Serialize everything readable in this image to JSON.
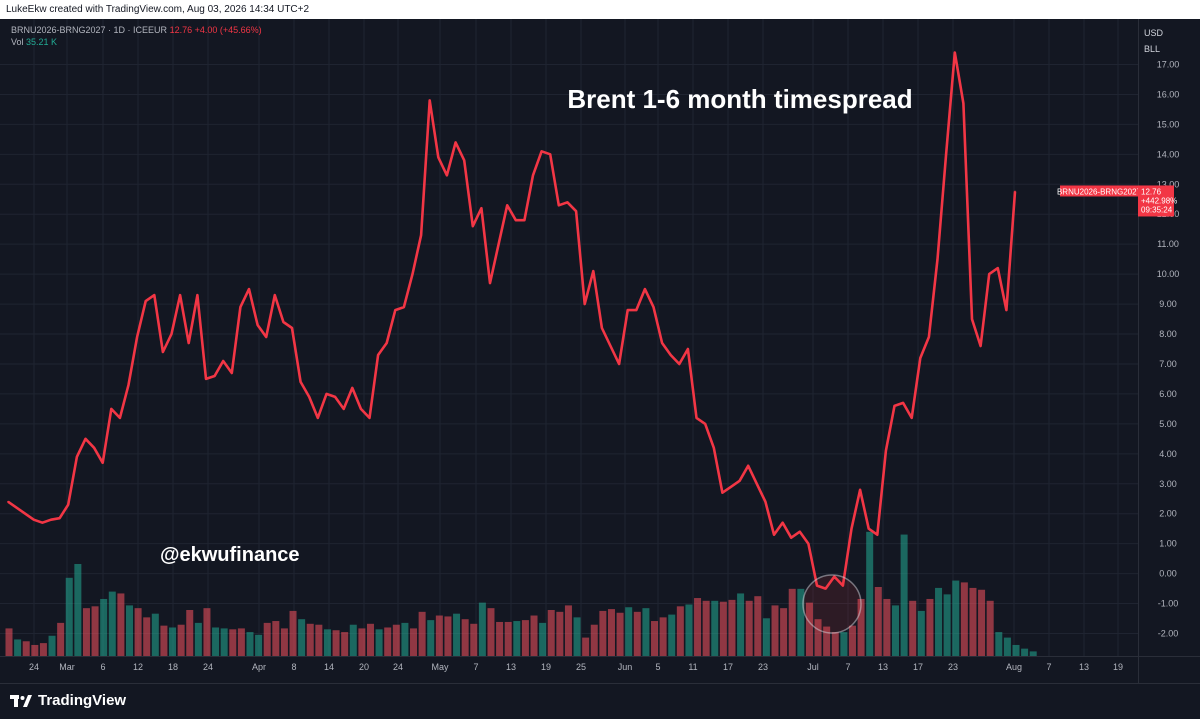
{
  "header": {
    "credit": "LukeEkw created with TradingView.com, Aug 03, 2026 14:34 UTC+2"
  },
  "legend": {
    "symbol": "BRNU2026-BRNG2027 · 1D · ICEEUR",
    "last": "12.76",
    "change": "+4.00 (+45.66%)",
    "vol_label": "Vol",
    "vol_value": "35.21 K"
  },
  "currency": {
    "line1": "USD",
    "line2": "BLL"
  },
  "price_tag": {
    "symbol": "BRNU2026-BRNG2027",
    "price": "12.76",
    "pct": "+442.98%",
    "countdown": "09:35:24"
  },
  "footer": {
    "brand": "TradingView"
  },
  "colors": {
    "line": "#f23645",
    "vol_up": "#22ab94",
    "vol_down": "#f7525f",
    "bg": "#131722",
    "grid": "#1f2431"
  },
  "chart_data": {
    "type": "line",
    "title": "Brent 1-6 month timespread",
    "annotation": "@ekwufinance",
    "ylim": [
      -2.5,
      17.5
    ],
    "yticks": [
      "17.00",
      "16.00",
      "15.00",
      "14.00",
      "13.00",
      "12.00",
      "11.00",
      "10.00",
      "9.00",
      "8.00",
      "7.00",
      "6.00",
      "5.00",
      "4.00",
      "3.00",
      "2.00",
      "1.00",
      "0.00",
      "-1.00",
      "-2.00"
    ],
    "xticks": [
      "24",
      "Mar",
      "6",
      "12",
      "18",
      "24",
      "Apr",
      "8",
      "14",
      "20",
      "24",
      "May",
      "7",
      "13",
      "19",
      "25",
      "Jun",
      "5",
      "11",
      "17",
      "23",
      "Jul",
      "7",
      "13",
      "17",
      "23",
      "Aug",
      "7",
      "13",
      "19"
    ],
    "grid": true,
    "series": [
      {
        "values": [
          2.4,
          2.2,
          2.0,
          1.8,
          1.7,
          1.8,
          1.85,
          2.3,
          3.9,
          4.5,
          4.2,
          3.7,
          5.5,
          5.2,
          6.3,
          7.9,
          9.1,
          9.3,
          7.4,
          8.0,
          9.3,
          7.7,
          9.3,
          6.5,
          6.6,
          7.1,
          6.7,
          8.9,
          9.5,
          8.3,
          7.9,
          9.3,
          8.4,
          8.2,
          6.4,
          5.9,
          5.2,
          6.0,
          5.9,
          5.5,
          6.2,
          5.5,
          5.2,
          7.3,
          7.7,
          8.8,
          8.9,
          10.0,
          11.3,
          15.8,
          13.9,
          13.3,
          14.4,
          13.8,
          11.6,
          12.2,
          9.7,
          11.0,
          12.3,
          11.8,
          11.8,
          13.3,
          14.1,
          14.0,
          12.3,
          12.4,
          12.1,
          9.0,
          10.1,
          8.2,
          7.6,
          7.0,
          8.8,
          8.8,
          9.5,
          8.9,
          7.7,
          7.3,
          7.0,
          7.5,
          5.2,
          5.0,
          4.2,
          2.7,
          2.9,
          3.1,
          3.6,
          3.0,
          2.4,
          1.3,
          1.7,
          1.2,
          1.4,
          1.0,
          -0.4,
          -0.5,
          -0.1,
          -0.4,
          1.5,
          2.8,
          1.5,
          1.3,
          4.1,
          5.6,
          5.7,
          5.2,
          7.2,
          7.9,
          10.5,
          14.0,
          17.4,
          15.7,
          8.5,
          7.6,
          10.0,
          10.2,
          8.8,
          12.76
        ]
      }
    ],
    "volume": {
      "values": [
        0.3,
        0.18,
        0.16,
        0.12,
        0.14,
        0.22,
        0.36,
        0.85,
        1.0,
        0.52,
        0.54,
        0.62,
        0.7,
        0.68,
        0.55,
        0.52,
        0.42,
        0.46,
        0.33,
        0.31,
        0.34,
        0.5,
        0.36,
        0.52,
        0.31,
        0.3,
        0.29,
        0.3,
        0.26,
        0.23,
        0.36,
        0.38,
        0.3,
        0.49,
        0.4,
        0.35,
        0.34,
        0.29,
        0.28,
        0.26,
        0.34,
        0.3,
        0.35,
        0.29,
        0.31,
        0.34,
        0.36,
        0.3,
        0.48,
        0.39,
        0.44,
        0.43,
        0.46,
        0.4,
        0.35,
        0.58,
        0.52,
        0.37,
        0.37,
        0.38,
        0.39,
        0.44,
        0.36,
        0.5,
        0.48,
        0.55,
        0.42,
        0.2,
        0.34,
        0.49,
        0.51,
        0.47,
        0.53,
        0.48,
        0.52,
        0.38,
        0.42,
        0.45,
        0.54,
        0.56,
        0.63,
        0.6,
        0.6,
        0.59,
        0.61,
        0.68,
        0.6,
        0.65,
        0.41,
        0.55,
        0.52,
        0.73,
        0.73,
        0.58,
        0.4,
        0.32,
        0.26,
        0.26,
        0.33,
        0.62,
        1.35,
        0.75,
        0.62,
        0.55,
        1.32,
        0.6,
        0.49,
        0.62,
        0.74,
        0.67,
        0.82,
        0.8,
        0.74,
        0.72,
        0.6,
        0.26,
        0.2,
        0.12,
        0.08,
        0.05
      ],
      "up": [
        false,
        true,
        false,
        false,
        false,
        true,
        false,
        true,
        true,
        false,
        false,
        true,
        true,
        false,
        true,
        false,
        false,
        true,
        false,
        true,
        false,
        false,
        true,
        false,
        true,
        true,
        false,
        false,
        true,
        true,
        false,
        false,
        false,
        false,
        true,
        false,
        false,
        true,
        false,
        false,
        true,
        false,
        false,
        true,
        false,
        false,
        true,
        false,
        false,
        true,
        false,
        false,
        true,
        false,
        false,
        true,
        false,
        false,
        false,
        true,
        false,
        false,
        true,
        false,
        false,
        false,
        true,
        false,
        false,
        false,
        false,
        false,
        true,
        false,
        true,
        false,
        false,
        true,
        false,
        true,
        false,
        false,
        true,
        false,
        false,
        true,
        false,
        false,
        true,
        false,
        false,
        false,
        true,
        false,
        false,
        false,
        false,
        true,
        false,
        false,
        true,
        false,
        false,
        true,
        true,
        false,
        true,
        false,
        true,
        true,
        true,
        false,
        false,
        false,
        false,
        true,
        true,
        true,
        true,
        true
      ]
    }
  }
}
